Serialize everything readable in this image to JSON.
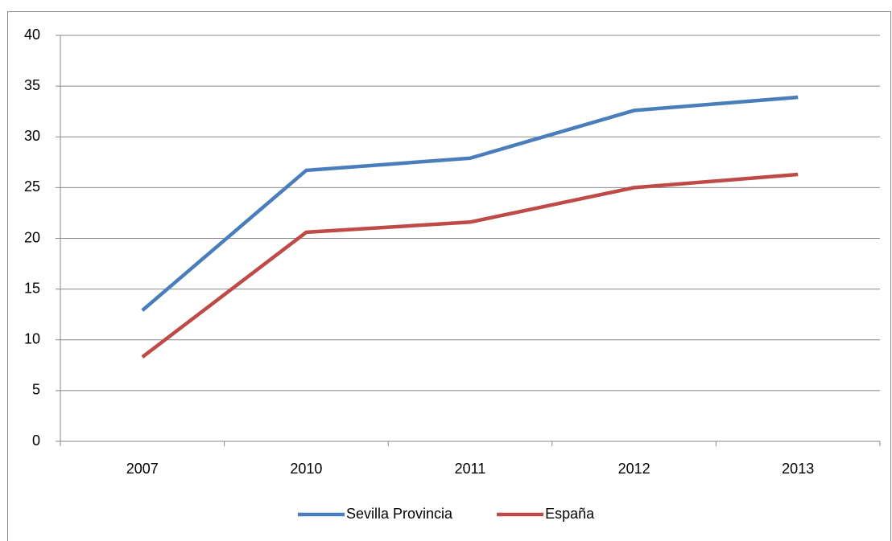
{
  "chart_data": {
    "type": "line",
    "categories": [
      "2007",
      "2010",
      "2011",
      "2012",
      "2013"
    ],
    "series": [
      {
        "name": "Sevilla Provincia",
        "color": "#4a7ebb",
        "values": [
          12.9,
          26.7,
          27.9,
          32.6,
          33.9
        ]
      },
      {
        "name": "España",
        "color": "#be4b48",
        "values": [
          8.3,
          20.6,
          21.6,
          25.0,
          26.3
        ]
      }
    ],
    "ylim": [
      0,
      40
    ],
    "yticks": [
      0,
      5,
      10,
      15,
      20,
      25,
      30,
      35,
      40
    ],
    "grid": true,
    "legend": "bottom"
  }
}
